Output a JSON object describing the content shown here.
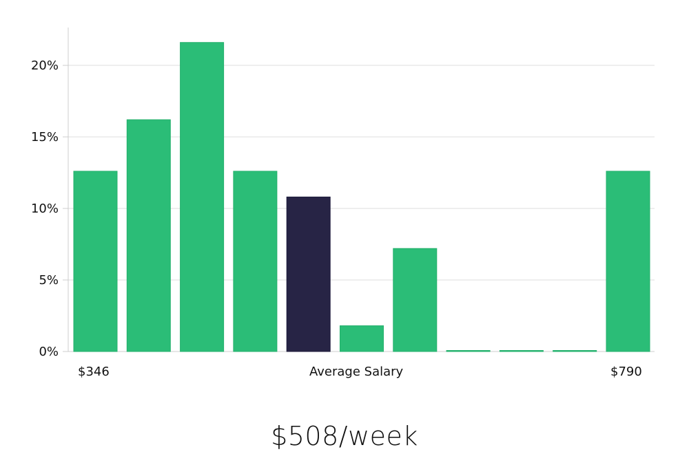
{
  "chart_data": {
    "type": "bar",
    "title": "",
    "xlabel": "Average Salary",
    "ylabel": "",
    "ylim": [
      0,
      22.6
    ],
    "yticks": [
      "0%",
      "5%",
      "10%",
      "15%",
      "20%"
    ],
    "grid": true,
    "x_range_labels": {
      "min": "$346",
      "max": "$790"
    },
    "categories": [
      "bin1",
      "bin2",
      "bin3",
      "bin4",
      "bin5",
      "bin6",
      "bin7",
      "bin8",
      "bin9",
      "bin10",
      "bin11"
    ],
    "values": [
      12.6,
      16.2,
      21.6,
      12.6,
      10.8,
      1.8,
      7.2,
      0,
      0,
      0,
      12.6
    ],
    "highlight_index": 4,
    "colors": {
      "default": "#2bbd77",
      "highlight": "#272445",
      "grid": "#dddddd",
      "axis": "#cccccc"
    }
  },
  "labels": {
    "min_salary": "$346",
    "axis_title": "Average Salary",
    "max_salary": "$790",
    "summary": "$508/week"
  },
  "yticks": [
    "0%",
    "5%",
    "10%",
    "15%",
    "20%"
  ]
}
